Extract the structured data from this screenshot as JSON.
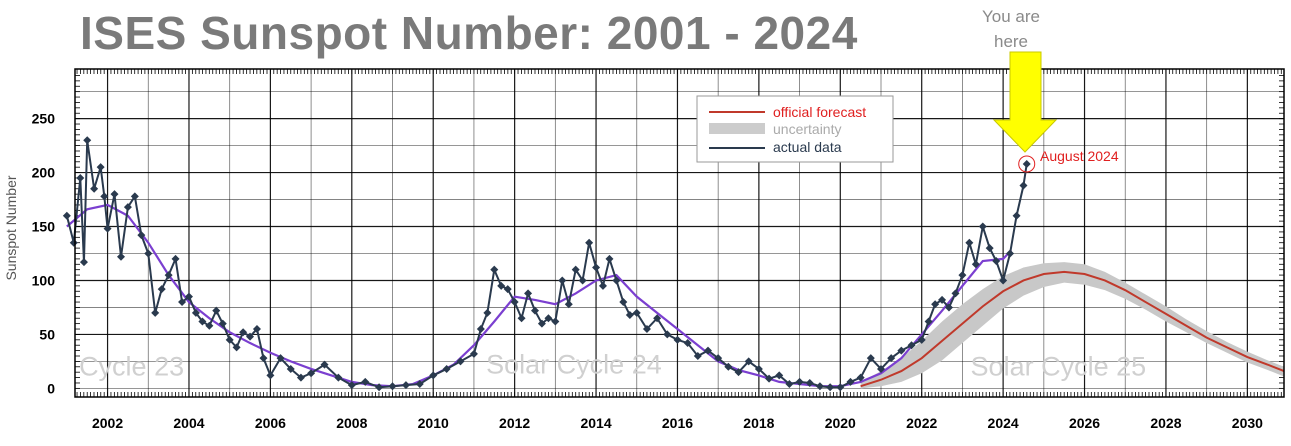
{
  "title": "ISES Sunspot Number: 2001 - 2024",
  "callout": {
    "line1": "You are",
    "line2": "here"
  },
  "annotation": "August 2024",
  "colors": {
    "forecast": "#c0392b",
    "uncertainty": "#c8c8c8",
    "actual": "#2a3a4e",
    "smoothed": "#7b3fd0",
    "arrow": "#ffff00",
    "title": "#7a7a7a"
  },
  "chart_data": {
    "type": "line",
    "title": "ISES Sunspot Number: 2001 - 2024",
    "xlabel": "",
    "ylabel": "Sunspot Number",
    "xlim": [
      2001.2,
      2030.9
    ],
    "ylim": [
      -8,
      296
    ],
    "grid": true,
    "legend_position": "top-center",
    "x_ticks": [
      2002,
      2004,
      2006,
      2008,
      2010,
      2012,
      2014,
      2016,
      2018,
      2020,
      2022,
      2024,
      2026,
      2028,
      2030
    ],
    "y_ticks": [
      0,
      50,
      100,
      150,
      200,
      250
    ],
    "legend": [
      {
        "label": "official forecast",
        "color": "#e02020"
      },
      {
        "label": "uncertainty",
        "color": "#aaaaaa"
      },
      {
        "label": "actual data",
        "color": "#2a3a4e"
      }
    ],
    "cycle_labels": [
      {
        "text": "Cycle 23",
        "x": 2001.3,
        "y": 12
      },
      {
        "text": "Solar Cycle 24",
        "x": 2011.3,
        "y": 14
      },
      {
        "text": "Solar Cycle 25",
        "x": 2023.2,
        "y": 12
      }
    ],
    "series": [
      {
        "name": "official forecast",
        "x": [
          2020.5,
          2021.0,
          2021.5,
          2022.0,
          2022.5,
          2023.0,
          2023.5,
          2024.0,
          2024.5,
          2025.0,
          2025.5,
          2026.0,
          2026.5,
          2027.0,
          2027.5,
          2028.0,
          2028.5,
          2029.0,
          2029.5,
          2030.0,
          2030.5,
          2030.9
        ],
        "y": [
          2,
          8,
          16,
          28,
          44,
          60,
          76,
          90,
          100,
          106,
          108,
          106,
          100,
          91,
          80,
          69,
          58,
          47,
          38,
          29,
          22,
          16
        ]
      },
      {
        "name": "uncertainty",
        "x": [
          2020.5,
          2021.0,
          2021.5,
          2022.0,
          2022.5,
          2023.0,
          2023.5,
          2024.0,
          2024.5,
          2025.0,
          2025.5,
          2026.0,
          2026.5,
          2027.0,
          2027.5,
          2028.0,
          2028.5,
          2029.0,
          2029.5,
          2030.0,
          2030.5,
          2030.9
        ],
        "upper": [
          6,
          16,
          28,
          44,
          62,
          78,
          92,
          104,
          112,
          116,
          117,
          115,
          108,
          98,
          87,
          76,
          64,
          53,
          43,
          34,
          26,
          20
        ],
        "lower": [
          0,
          2,
          6,
          14,
          26,
          42,
          58,
          74,
          86,
          94,
          98,
          96,
          91,
          83,
          73,
          62,
          52,
          42,
          33,
          24,
          17,
          11
        ]
      },
      {
        "name": "actual data",
        "x": [
          2001.0,
          2001.17,
          2001.33,
          2001.42,
          2001.5,
          2001.67,
          2001.83,
          2001.92,
          2002.0,
          2002.17,
          2002.33,
          2002.5,
          2002.67,
          2002.83,
          2003.0,
          2003.17,
          2003.33,
          2003.5,
          2003.67,
          2003.83,
          2004.0,
          2004.17,
          2004.33,
          2004.5,
          2004.67,
          2004.83,
          2005.0,
          2005.17,
          2005.33,
          2005.5,
          2005.67,
          2005.83,
          2006.0,
          2006.25,
          2006.5,
          2006.75,
          2007.0,
          2007.33,
          2007.67,
          2008.0,
          2008.33,
          2008.67,
          2009.0,
          2009.33,
          2009.67,
          2010.0,
          2010.33,
          2010.67,
          2011.0,
          2011.17,
          2011.33,
          2011.5,
          2011.67,
          2011.83,
          2012.0,
          2012.17,
          2012.33,
          2012.5,
          2012.67,
          2012.83,
          2013.0,
          2013.17,
          2013.33,
          2013.5,
          2013.67,
          2013.83,
          2014.0,
          2014.17,
          2014.33,
          2014.5,
          2014.67,
          2014.83,
          2015.0,
          2015.25,
          2015.5,
          2015.75,
          2016.0,
          2016.25,
          2016.5,
          2016.75,
          2017.0,
          2017.25,
          2017.5,
          2017.75,
          2018.0,
          2018.25,
          2018.5,
          2018.75,
          2019.0,
          2019.25,
          2019.5,
          2019.75,
          2020.0,
          2020.25,
          2020.5,
          2020.75,
          2021.0,
          2021.25,
          2021.5,
          2021.75,
          2022.0,
          2022.17,
          2022.33,
          2022.5,
          2022.67,
          2022.83,
          2023.0,
          2023.17,
          2023.33,
          2023.5,
          2023.67,
          2023.83,
          2024.0,
          2024.17,
          2024.33,
          2024.5,
          2024.58
        ],
        "y": [
          160,
          135,
          195,
          117,
          230,
          185,
          205,
          178,
          148,
          180,
          122,
          168,
          178,
          142,
          125,
          70,
          92,
          105,
          120,
          80,
          85,
          70,
          62,
          58,
          72,
          60,
          45,
          38,
          52,
          48,
          55,
          28,
          12,
          28,
          18,
          10,
          14,
          22,
          10,
          3,
          6,
          1,
          2,
          3,
          4,
          12,
          18,
          25,
          32,
          55,
          70,
          110,
          95,
          92,
          80,
          65,
          88,
          72,
          60,
          65,
          62,
          100,
          78,
          110,
          100,
          135,
          112,
          95,
          120,
          100,
          80,
          68,
          70,
          55,
          65,
          50,
          45,
          42,
          30,
          35,
          28,
          20,
          15,
          25,
          18,
          9,
          12,
          4,
          6,
          5,
          2,
          1,
          1,
          6,
          10,
          28,
          18,
          28,
          35,
          40,
          45,
          62,
          78,
          82,
          75,
          88,
          105,
          135,
          115,
          150,
          130,
          118,
          100,
          125,
          160,
          188,
          208
        ]
      },
      {
        "name": "smoothed",
        "x": [
          2001.0,
          2001.5,
          2002.0,
          2002.5,
          2003.0,
          2003.5,
          2004.0,
          2004.5,
          2005.0,
          2005.5,
          2006.0,
          2006.5,
          2007.0,
          2007.5,
          2008.0,
          2008.5,
          2009.0,
          2009.5,
          2010.0,
          2010.5,
          2011.0,
          2011.5,
          2012.0,
          2012.5,
          2013.0,
          2013.5,
          2014.0,
          2014.5,
          2015.0,
          2015.5,
          2016.0,
          2016.5,
          2017.0,
          2017.5,
          2018.0,
          2018.5,
          2019.0,
          2019.5,
          2020.0,
          2020.5,
          2021.0,
          2021.5,
          2022.0,
          2022.5,
          2023.0,
          2023.5,
          2024.0,
          2024.2
        ],
        "y": [
          150,
          166,
          170,
          160,
          135,
          105,
          80,
          65,
          52,
          42,
          33,
          25,
          18,
          12,
          6,
          3,
          2,
          4,
          12,
          22,
          40,
          62,
          85,
          82,
          78,
          88,
          100,
          105,
          85,
          70,
          55,
          40,
          25,
          17,
          12,
          6,
          4,
          2,
          2,
          6,
          14,
          28,
          50,
          72,
          95,
          118,
          120,
          128
        ]
      }
    ]
  }
}
